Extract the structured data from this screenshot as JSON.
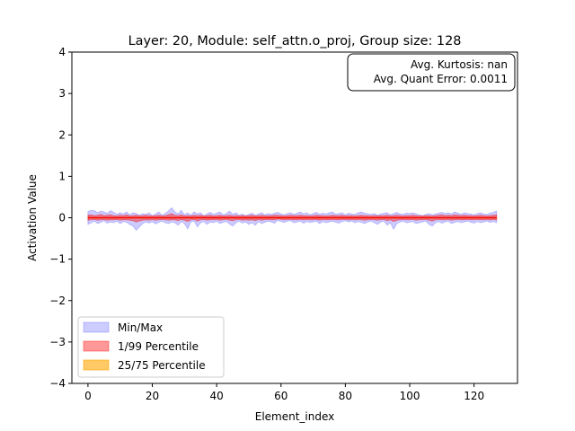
{
  "chart_data": {
    "type": "area",
    "title": "Layer: 20, Module: self_attn.o_proj,  Group size: 128",
    "xlabel": "Element_index",
    "ylabel": "Activation Value",
    "xlim": [
      -5,
      133.5
    ],
    "ylim": [
      -4,
      4
    ],
    "xticks": [
      0,
      20,
      40,
      60,
      80,
      100,
      120
    ],
    "yticks": [
      -4,
      -3,
      -2,
      -1,
      0,
      1,
      2,
      3,
      4
    ],
    "xtick_labels": [
      "0",
      "20",
      "40",
      "60",
      "80",
      "100",
      "120"
    ],
    "ytick_labels": [
      "−4",
      "−3",
      "−2",
      "−1",
      "0",
      "1",
      "2",
      "3",
      "4"
    ],
    "grid": false,
    "legend_position": "lower-left",
    "annotation": {
      "lines": [
        "Avg. Kurtosis: nan",
        "Avg. Quant Error: 0.0011"
      ],
      "position": "top-right"
    },
    "x_range": [
      0,
      127
    ],
    "series": [
      {
        "name": "Min/Max",
        "color": "#0000ff",
        "opacity": 0.2,
        "upper": [
          0.15,
          0.18,
          0.17,
          0.12,
          0.16,
          0.14,
          0.1,
          0.17,
          0.13,
          0.08,
          0.12,
          0.09,
          0.14,
          0.07,
          0.12,
          0.1,
          0.06,
          0.1,
          0.08,
          0.12,
          0.05,
          0.09,
          0.14,
          0.06,
          0.1,
          0.16,
          0.24,
          0.14,
          0.09,
          0.18,
          0.07,
          0.12,
          0.06,
          0.14,
          0.09,
          0.12,
          0.05,
          0.09,
          0.13,
          0.08,
          0.11,
          0.14,
          0.07,
          0.1,
          0.16,
          0.08,
          0.12,
          0.06,
          0.09,
          0.05,
          0.08,
          0.11,
          0.06,
          0.09,
          0.12,
          0.07,
          0.1,
          0.08,
          0.11,
          0.13,
          0.09,
          0.07,
          0.1,
          0.12,
          0.08,
          0.11,
          0.14,
          0.09,
          0.12,
          0.07,
          0.1,
          0.13,
          0.08,
          0.11,
          0.09,
          0.12,
          0.14,
          0.08,
          0.1,
          0.12,
          0.07,
          0.11,
          0.09,
          0.08,
          0.12,
          0.14,
          0.11,
          0.09,
          0.08,
          0.1,
          0.06,
          0.09,
          0.11,
          0.12,
          0.07,
          0.1,
          0.13,
          0.09,
          0.08,
          0.11,
          0.1,
          0.12,
          0.09,
          0.07,
          0.05,
          0.08,
          0.1,
          0.07,
          0.09,
          0.11,
          0.13,
          0.1,
          0.12,
          0.09,
          0.14,
          0.11,
          0.08,
          0.12,
          0.1,
          0.09,
          0.07,
          0.1,
          0.12,
          0.09,
          0.08,
          0.11,
          0.13,
          0.16
        ],
        "lower": [
          -0.16,
          -0.12,
          -0.08,
          -0.14,
          -0.11,
          -0.07,
          -0.13,
          -0.1,
          -0.12,
          -0.08,
          -0.14,
          -0.09,
          -0.11,
          -0.16,
          -0.2,
          -0.3,
          -0.22,
          -0.14,
          -0.1,
          -0.13,
          -0.09,
          -0.15,
          -0.11,
          -0.08,
          -0.12,
          -0.14,
          -0.1,
          -0.12,
          -0.18,
          -0.09,
          -0.14,
          -0.27,
          -0.1,
          -0.08,
          -0.22,
          -0.12,
          -0.09,
          -0.16,
          -0.1,
          -0.12,
          -0.08,
          -0.14,
          -0.11,
          -0.09,
          -0.15,
          -0.2,
          -0.12,
          -0.08,
          -0.13,
          -0.1,
          -0.16,
          -0.12,
          -0.18,
          -0.09,
          -0.14,
          -0.11,
          -0.08,
          -0.1,
          -0.13,
          -0.06,
          -0.09,
          -0.11,
          -0.08,
          -0.07,
          -0.12,
          -0.1,
          -0.08,
          -0.13,
          -0.09,
          -0.11,
          -0.1,
          -0.08,
          -0.14,
          -0.09,
          -0.12,
          -0.1,
          -0.08,
          -0.11,
          -0.13,
          -0.09,
          -0.07,
          -0.1,
          -0.08,
          -0.12,
          -0.09,
          -0.11,
          -0.14,
          -0.1,
          -0.08,
          -0.12,
          -0.16,
          -0.1,
          -0.08,
          -0.18,
          -0.12,
          -0.28,
          -0.14,
          -0.1,
          -0.08,
          -0.12,
          -0.11,
          -0.09,
          -0.14,
          -0.12,
          -0.1,
          -0.08,
          -0.16,
          -0.2,
          -0.12,
          -0.09,
          -0.13,
          -0.1,
          -0.08,
          -0.14,
          -0.11,
          -0.09,
          -0.12,
          -0.1,
          -0.08,
          -0.11,
          -0.13,
          -0.09,
          -0.12,
          -0.1,
          -0.08,
          -0.11,
          -0.09,
          -0.12
        ]
      },
      {
        "name": "1/99 Percentile",
        "color": "#ff0000",
        "opacity": 0.4,
        "upper": [
          0.06,
          0.07,
          0.05,
          0.06,
          0.08,
          0.05,
          0.06,
          0.07,
          0.05,
          0.04,
          0.06,
          0.05,
          0.07,
          0.04,
          0.05,
          0.06,
          0.04,
          0.05,
          0.06,
          0.05,
          0.04,
          0.05,
          0.06,
          0.04,
          0.05,
          0.07,
          0.1,
          0.06,
          0.05,
          0.07,
          0.04,
          0.05,
          0.04,
          0.06,
          0.05,
          0.06,
          0.04,
          0.05,
          0.06,
          0.04,
          0.05,
          0.06,
          0.04,
          0.05,
          0.06,
          0.04,
          0.05,
          0.04,
          0.05,
          0.04,
          0.05,
          0.06,
          0.04,
          0.05,
          0.06,
          0.04,
          0.05,
          0.05,
          0.06,
          0.06,
          0.05,
          0.04,
          0.05,
          0.06,
          0.05,
          0.05,
          0.06,
          0.05,
          0.05,
          0.04,
          0.05,
          0.06,
          0.05,
          0.05,
          0.04,
          0.05,
          0.06,
          0.05,
          0.05,
          0.06,
          0.04,
          0.05,
          0.05,
          0.04,
          0.05,
          0.06,
          0.05,
          0.05,
          0.04,
          0.05,
          0.04,
          0.05,
          0.05,
          0.06,
          0.04,
          0.05,
          0.06,
          0.05,
          0.04,
          0.05,
          0.05,
          0.06,
          0.05,
          0.04,
          0.04,
          0.05,
          0.05,
          0.04,
          0.05,
          0.06,
          0.07,
          0.05,
          0.06,
          0.05,
          0.07,
          0.06,
          0.05,
          0.06,
          0.05,
          0.05,
          0.04,
          0.05,
          0.06,
          0.05,
          0.04,
          0.05,
          0.06,
          0.07
        ],
        "lower": [
          -0.06,
          -0.05,
          -0.04,
          -0.06,
          -0.05,
          -0.04,
          -0.06,
          -0.05,
          -0.05,
          -0.04,
          -0.06,
          -0.05,
          -0.05,
          -0.06,
          -0.07,
          -0.1,
          -0.08,
          -0.06,
          -0.05,
          -0.06,
          -0.04,
          -0.06,
          -0.05,
          -0.04,
          -0.05,
          -0.06,
          -0.05,
          -0.05,
          -0.07,
          -0.04,
          -0.06,
          -0.09,
          -0.05,
          -0.04,
          -0.08,
          -0.05,
          -0.04,
          -0.06,
          -0.05,
          -0.05,
          -0.04,
          -0.06,
          -0.05,
          -0.04,
          -0.06,
          -0.07,
          -0.05,
          -0.04,
          -0.06,
          -0.05,
          -0.06,
          -0.05,
          -0.07,
          -0.04,
          -0.06,
          -0.05,
          -0.04,
          -0.05,
          -0.05,
          -0.03,
          -0.04,
          -0.05,
          -0.04,
          -0.04,
          -0.05,
          -0.05,
          -0.04,
          -0.05,
          -0.04,
          -0.05,
          -0.05,
          -0.04,
          -0.06,
          -0.04,
          -0.05,
          -0.05,
          -0.04,
          -0.05,
          -0.05,
          -0.04,
          -0.04,
          -0.05,
          -0.04,
          -0.05,
          -0.04,
          -0.05,
          -0.06,
          -0.05,
          -0.04,
          -0.05,
          -0.06,
          -0.05,
          -0.04,
          -0.07,
          -0.05,
          -0.09,
          -0.06,
          -0.05,
          -0.04,
          -0.05,
          -0.05,
          -0.04,
          -0.06,
          -0.05,
          -0.05,
          -0.04,
          -0.06,
          -0.08,
          -0.05,
          -0.04,
          -0.05,
          -0.05,
          -0.04,
          -0.06,
          -0.05,
          -0.04,
          -0.05,
          -0.05,
          -0.04,
          -0.05,
          -0.05,
          -0.04,
          -0.05,
          -0.05,
          -0.04,
          -0.05,
          -0.04,
          -0.05
        ]
      },
      {
        "name": "25/75 Percentile",
        "color": "#ffa500",
        "opacity": 0.6,
        "band": 0.012
      },
      {
        "name": "median",
        "color": "#ff0000",
        "line": true,
        "value": 0.0
      }
    ]
  }
}
